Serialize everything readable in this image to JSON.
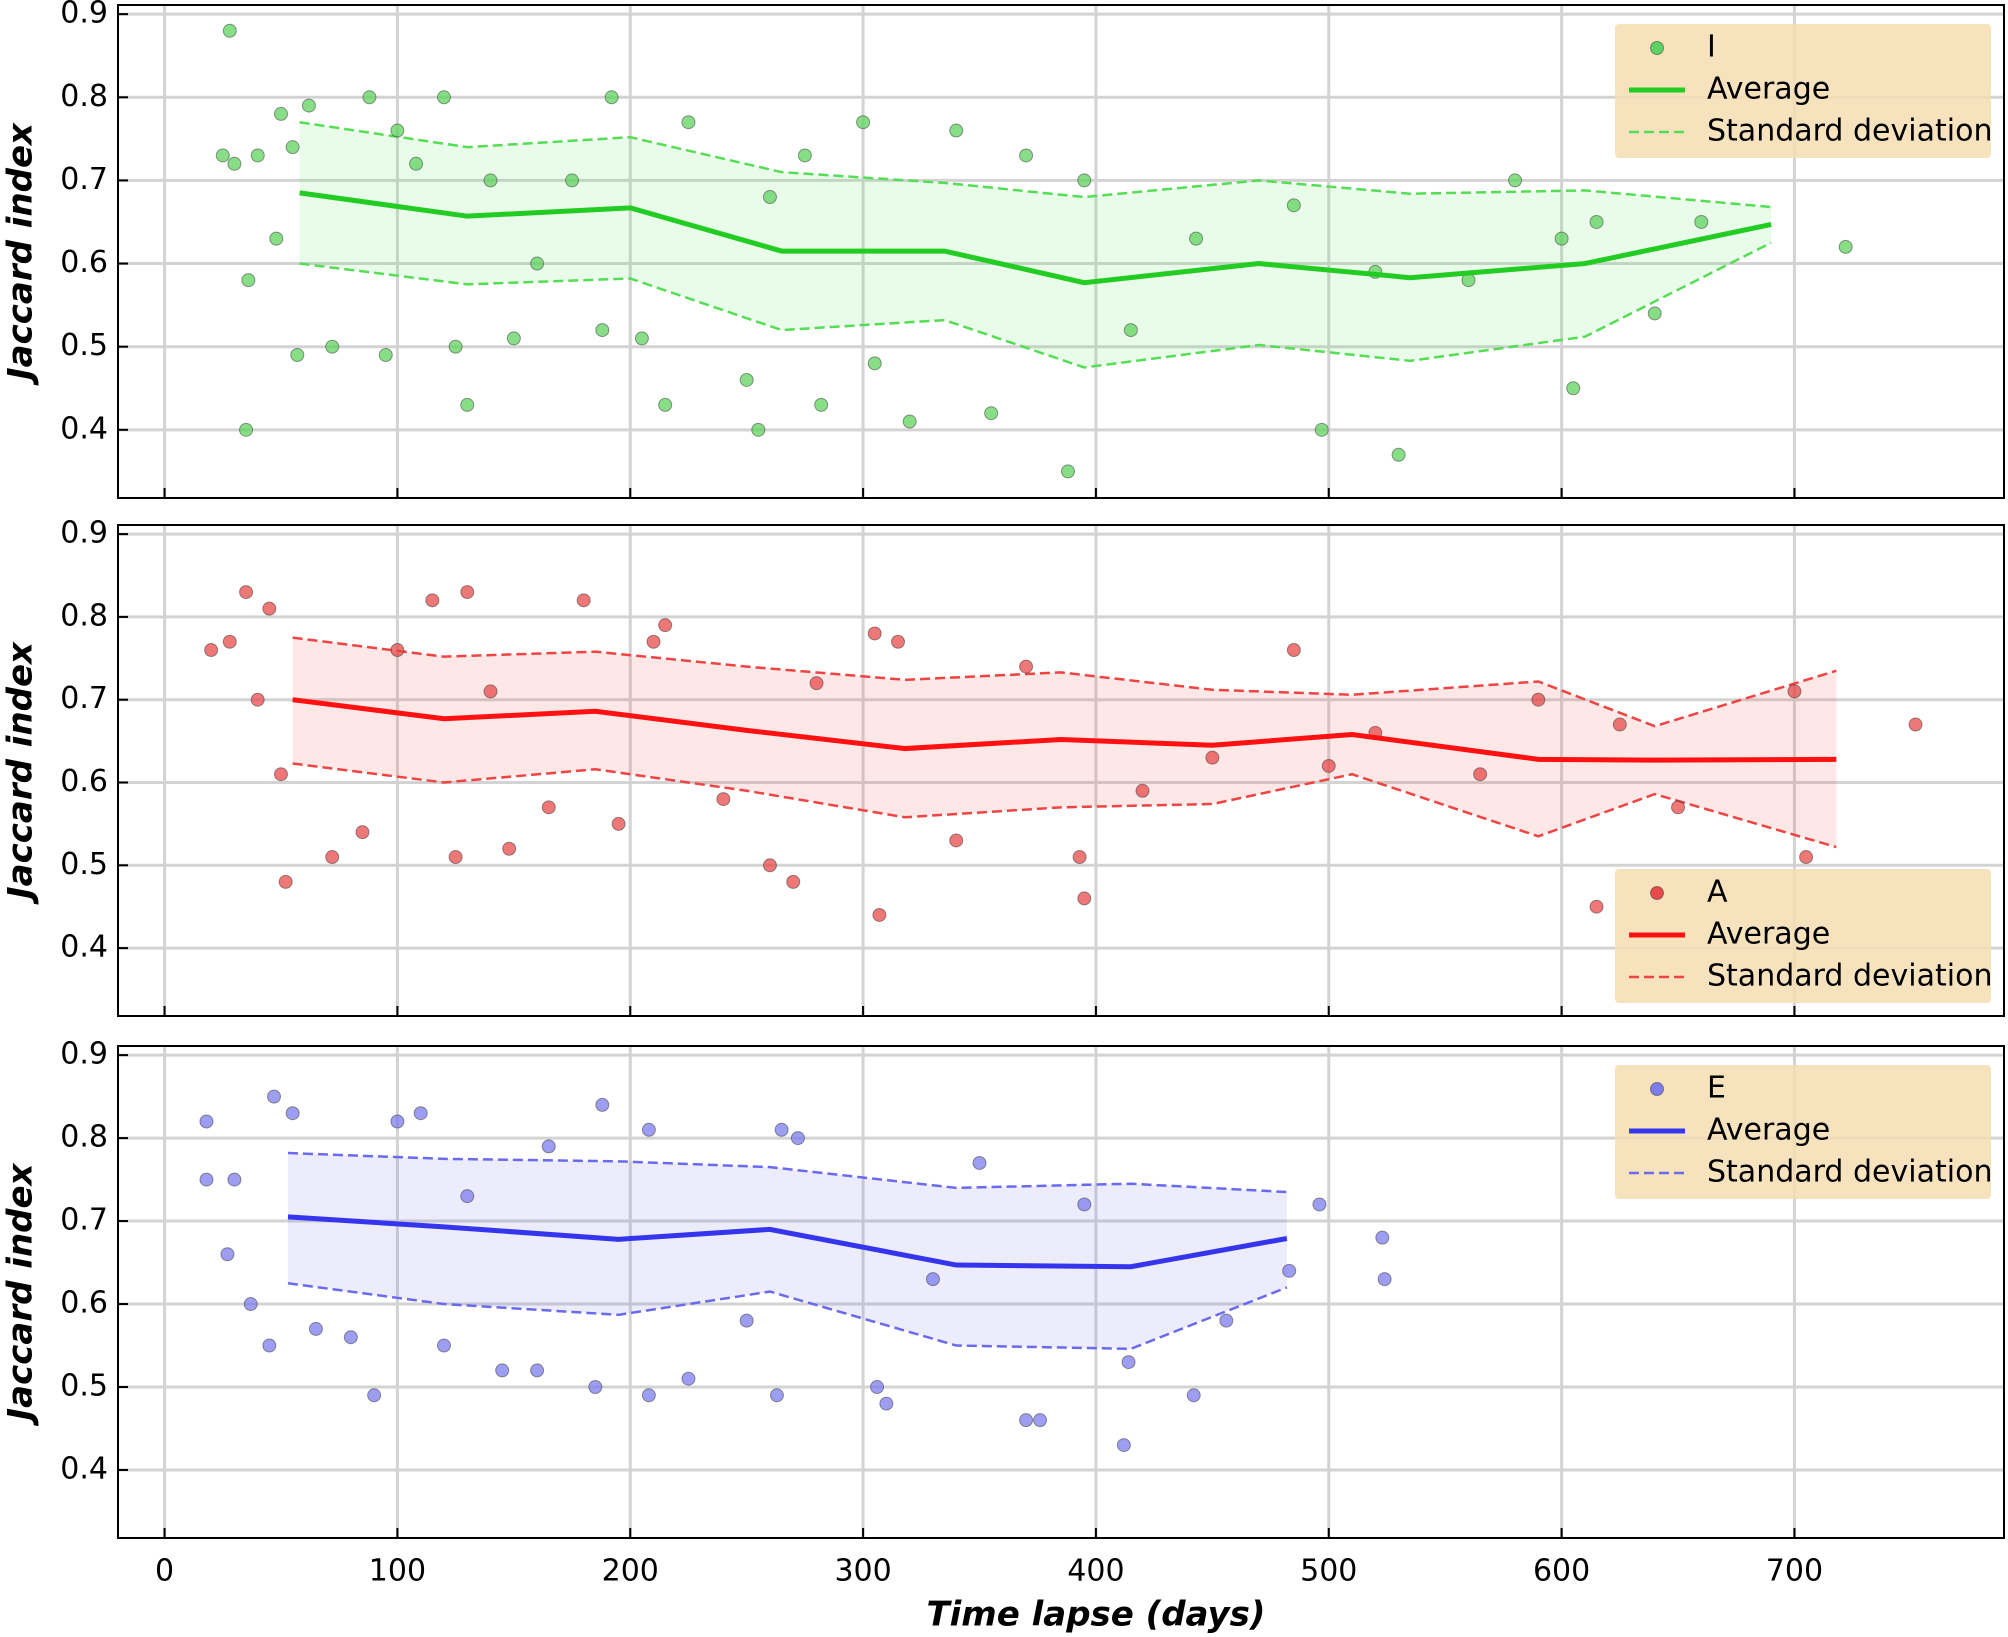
{
  "chart_data": [
    {
      "type": "scatter",
      "ylabel": "Jaccard index",
      "xlim": [
        -20,
        790
      ],
      "ylim": [
        0.318,
        0.911
      ],
      "xticks": [
        0,
        100,
        200,
        300,
        400,
        500,
        600,
        700
      ],
      "yticks": [
        0.4,
        0.5,
        0.6,
        0.7,
        0.8,
        0.9
      ],
      "grid": true,
      "legend": "upper right",
      "series": [
        {
          "name": "I",
          "type": "scatter",
          "color": "#5fd35f",
          "x": [
            28,
            25,
            30,
            35,
            36,
            40,
            48,
            50,
            55,
            57,
            62,
            72,
            88,
            95,
            100,
            108,
            120,
            125,
            130,
            140,
            150,
            160,
            175,
            188,
            192,
            205,
            215,
            225,
            250,
            255,
            260,
            275,
            282,
            300,
            305,
            320,
            340,
            355,
            370,
            388,
            395,
            415,
            443,
            485,
            497,
            520,
            530,
            560,
            580,
            600,
            605,
            615,
            640,
            660,
            722
          ],
          "values": [
            0.88,
            0.73,
            0.72,
            0.4,
            0.58,
            0.73,
            0.63,
            0.78,
            0.74,
            0.49,
            0.79,
            0.5,
            0.8,
            0.49,
            0.76,
            0.72,
            0.8,
            0.5,
            0.43,
            0.7,
            0.51,
            0.6,
            0.7,
            0.52,
            0.8,
            0.51,
            0.43,
            0.77,
            0.46,
            0.4,
            0.68,
            0.73,
            0.43,
            0.77,
            0.48,
            0.41,
            0.76,
            0.42,
            0.73,
            0.35,
            0.7,
            0.52,
            0.63,
            0.67,
            0.4,
            0.59,
            0.37,
            0.58,
            0.7,
            0.63,
            0.45,
            0.65,
            0.54,
            0.65,
            0.62
          ]
        },
        {
          "name": "Average",
          "type": "line",
          "color": "#22cc22",
          "x": [
            58,
            130,
            200,
            265,
            335,
            395,
            470,
            535,
            610,
            690
          ],
          "values": [
            0.685,
            0.657,
            0.667,
            0.615,
            0.615,
            0.577,
            0.6,
            0.583,
            0.6,
            0.647
          ]
        },
        {
          "name": "Standard deviation",
          "type": "band",
          "color": "#55dd55",
          "x": [
            58,
            130,
            200,
            265,
            335,
            395,
            470,
            535,
            610,
            690
          ],
          "upper": [
            0.77,
            0.74,
            0.752,
            0.71,
            0.697,
            0.68,
            0.7,
            0.684,
            0.688,
            0.668
          ],
          "lower": [
            0.6,
            0.575,
            0.582,
            0.52,
            0.532,
            0.475,
            0.502,
            0.483,
            0.512,
            0.625
          ]
        }
      ]
    },
    {
      "type": "scatter",
      "ylabel": "Jaccard index",
      "xlim": [
        -20,
        790
      ],
      "ylim": [
        0.318,
        0.911
      ],
      "xticks": [
        0,
        100,
        200,
        300,
        400,
        500,
        600,
        700
      ],
      "yticks": [
        0.4,
        0.5,
        0.6,
        0.7,
        0.8,
        0.9
      ],
      "grid": true,
      "legend": "lower right",
      "series": [
        {
          "name": "A",
          "type": "scatter",
          "color": "#e84a4a",
          "x": [
            20,
            28,
            35,
            40,
            45,
            50,
            52,
            72,
            85,
            100,
            115,
            125,
            130,
            140,
            148,
            165,
            180,
            195,
            210,
            215,
            240,
            260,
            270,
            280,
            305,
            307,
            315,
            340,
            370,
            393,
            395,
            420,
            450,
            485,
            500,
            520,
            565,
            590,
            615,
            625,
            650,
            700,
            705,
            752
          ],
          "values": [
            0.76,
            0.77,
            0.83,
            0.7,
            0.81,
            0.61,
            0.48,
            0.51,
            0.54,
            0.76,
            0.82,
            0.51,
            0.83,
            0.71,
            0.52,
            0.57,
            0.82,
            0.55,
            0.77,
            0.79,
            0.58,
            0.5,
            0.48,
            0.72,
            0.78,
            0.44,
            0.77,
            0.53,
            0.74,
            0.51,
            0.46,
            0.59,
            0.63,
            0.76,
            0.62,
            0.66,
            0.61,
            0.7,
            0.45,
            0.67,
            0.57,
            0.71,
            0.51,
            0.67
          ]
        },
        {
          "name": "Average",
          "type": "line",
          "color": "#ff1111",
          "x": [
            55,
            120,
            185,
            250,
            318,
            385,
            450,
            510,
            590,
            640,
            718
          ],
          "values": [
            0.7,
            0.677,
            0.686,
            0.663,
            0.641,
            0.652,
            0.645,
            0.658,
            0.628,
            0.627,
            0.628
          ]
        },
        {
          "name": "Standard deviation",
          "type": "band",
          "color": "#ee4444",
          "x": [
            55,
            120,
            185,
            250,
            318,
            385,
            450,
            510,
            590,
            640,
            718
          ],
          "upper": [
            0.775,
            0.752,
            0.758,
            0.74,
            0.724,
            0.733,
            0.712,
            0.706,
            0.722,
            0.668,
            0.735
          ],
          "lower": [
            0.623,
            0.6,
            0.616,
            0.59,
            0.558,
            0.57,
            0.574,
            0.61,
            0.535,
            0.586,
            0.522
          ]
        }
      ]
    },
    {
      "type": "scatter",
      "ylabel": "Jaccard index",
      "xlabel": "Time lapse (days)",
      "xlim": [
        -20,
        790
      ],
      "ylim": [
        0.318,
        0.911
      ],
      "xticks": [
        0,
        100,
        200,
        300,
        400,
        500,
        600,
        700
      ],
      "yticks": [
        0.4,
        0.5,
        0.6,
        0.7,
        0.8,
        0.9
      ],
      "grid": true,
      "legend": "upper right",
      "series": [
        {
          "name": "E",
          "type": "scatter",
          "color": "#7c7cec",
          "x": [
            18,
            18,
            27,
            30,
            37,
            45,
            47,
            55,
            65,
            80,
            90,
            100,
            110,
            120,
            130,
            145,
            160,
            165,
            185,
            188,
            208,
            208,
            225,
            250,
            263,
            265,
            272,
            306,
            310,
            330,
            350,
            370,
            376,
            395,
            412,
            414,
            442,
            456,
            483,
            496,
            523,
            524
          ],
          "values": [
            0.82,
            0.75,
            0.66,
            0.75,
            0.6,
            0.55,
            0.85,
            0.83,
            0.57,
            0.56,
            0.49,
            0.82,
            0.83,
            0.55,
            0.73,
            0.52,
            0.52,
            0.79,
            0.5,
            0.84,
            0.81,
            0.49,
            0.51,
            0.58,
            0.49,
            0.81,
            0.8,
            0.5,
            0.48,
            0.63,
            0.77,
            0.46,
            0.46,
            0.72,
            0.43,
            0.53,
            0.49,
            0.58,
            0.64,
            0.72,
            0.68,
            0.63
          ]
        },
        {
          "name": "Average",
          "type": "line",
          "color": "#3535ee",
          "x": [
            53,
            120,
            195,
            260,
            340,
            415,
            482
          ],
          "values": [
            0.705,
            0.693,
            0.678,
            0.69,
            0.647,
            0.645,
            0.679
          ]
        },
        {
          "name": "Standard deviation",
          "type": "band",
          "color": "#6a6aee",
          "x": [
            53,
            120,
            195,
            260,
            340,
            415,
            482
          ],
          "upper": [
            0.782,
            0.775,
            0.772,
            0.765,
            0.74,
            0.745,
            0.735
          ],
          "lower": [
            0.625,
            0.6,
            0.587,
            0.615,
            0.55,
            0.546,
            0.62
          ]
        }
      ]
    }
  ]
}
